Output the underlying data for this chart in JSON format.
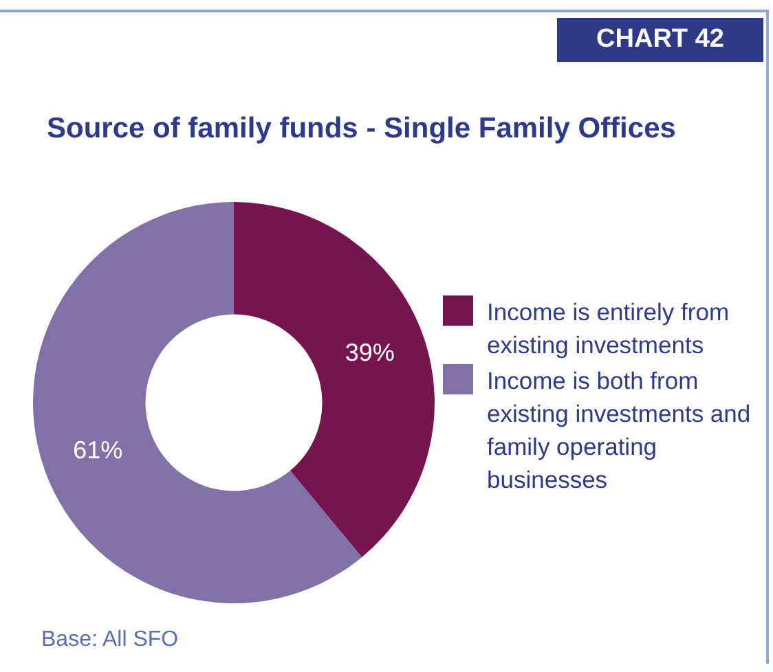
{
  "chart_data": {
    "type": "donut",
    "title": "Source of family funds - Single Family Offices",
    "categories": [
      "Income is entirely from existing investments",
      "Income is both from existing investments and family operating businesses"
    ],
    "values": [
      39,
      61
    ],
    "colors": [
      "#76144f",
      "#8270a8"
    ],
    "value_labels": [
      "39%",
      "61%"
    ],
    "legend": "right",
    "annotations": [
      "CHART 42",
      "Base: All SFO"
    ]
  }
}
